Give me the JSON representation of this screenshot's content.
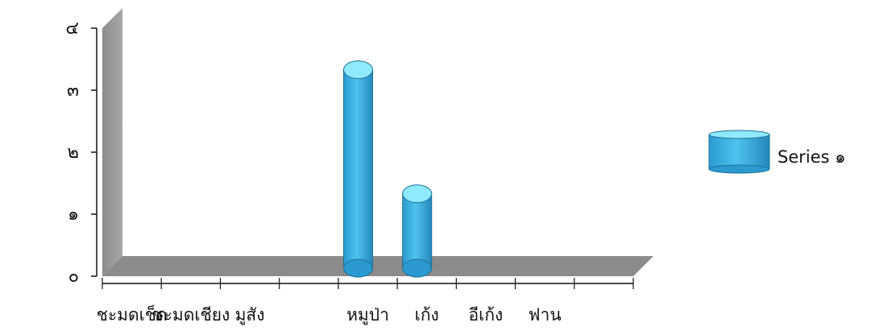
{
  "chart_data": {
    "type": "bar",
    "style": "3d-cylinder",
    "title": "",
    "xlabel": "",
    "ylabel": "",
    "categories": [
      "ชะมดเช็ด",
      "ชะมดเชียง",
      "มูสัง",
      "",
      "หมูป่า",
      "เก้ง",
      "อีเก้ง",
      "ฟาน",
      ""
    ],
    "series": [
      {
        "name": "Series ๑",
        "values": [
          0,
          0,
          0,
          0,
          3.2,
          1.2,
          0,
          0,
          0
        ]
      }
    ],
    "ylim": [
      0,
      4
    ],
    "yticks": [
      "๐",
      "๑",
      "๒",
      "๓",
      "๔"
    ],
    "grid": false,
    "legend_position": "right",
    "colors": {
      "bar_body": "#3fb2e2",
      "bar_top": "#8feaff",
      "bar_stroke": "#1f6f96",
      "wall": "#9b9b9b",
      "floor": "#8a8a8a",
      "axis": "#111111"
    }
  }
}
